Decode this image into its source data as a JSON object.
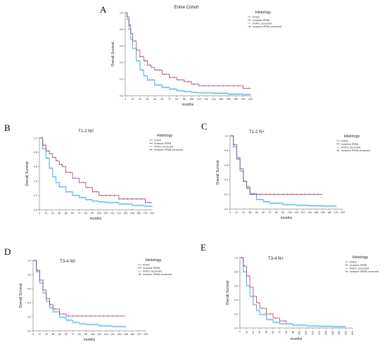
{
  "colors": {
    "fdac": "#5aaedc",
    "ipmn": "#9b3f6a",
    "fdac_censored": "#7cc4ea",
    "ipmn_censored": "#c0425d",
    "axis": "#555555"
  },
  "chart_data": [
    {
      "type": "line",
      "panel_label": "A",
      "title": "Entire Cohort",
      "xlabel": "months",
      "ylabel": "Overall Survival",
      "xlim": [
        0,
        204
      ],
      "ylim": [
        0,
        1.0
      ],
      "xticks": [
        "0",
        "12",
        "24",
        "36",
        "48",
        "60",
        "72",
        "84",
        "96",
        "108",
        "120",
        "132",
        "144",
        "156",
        "168",
        "180",
        "192",
        "204"
      ],
      "yticks": [
        "0.0",
        "0.2",
        "0.4",
        "0.6",
        "0.8",
        "1.0"
      ],
      "legend": {
        "title": "Histology",
        "entries": [
          "FDAC",
          "invasive IPMN",
          "FDAC-censored",
          "invasive IPMN-censored"
        ]
      },
      "series": [
        {
          "name": "FDAC",
          "x": [
            0,
            3,
            6,
            9,
            12,
            18,
            24,
            30,
            36,
            48,
            60,
            72,
            84,
            96,
            108,
            120,
            144,
            168,
            192,
            204
          ],
          "y": [
            1.0,
            0.92,
            0.8,
            0.68,
            0.57,
            0.42,
            0.31,
            0.24,
            0.19,
            0.13,
            0.1,
            0.08,
            0.06,
            0.05,
            0.04,
            0.035,
            0.03,
            0.02,
            0.015,
            0.01
          ]
        },
        {
          "name": "invasive IPMN",
          "x": [
            0,
            3,
            6,
            9,
            12,
            18,
            24,
            30,
            36,
            42,
            48,
            60,
            72,
            84,
            96,
            108,
            120,
            144,
            168,
            192,
            204
          ],
          "y": [
            1.0,
            0.95,
            0.85,
            0.75,
            0.66,
            0.55,
            0.47,
            0.42,
            0.37,
            0.34,
            0.31,
            0.26,
            0.22,
            0.19,
            0.17,
            0.14,
            0.12,
            0.12,
            0.12,
            0.09,
            0.09
          ]
        }
      ]
    },
    {
      "type": "line",
      "panel_label": "B",
      "title": "T1-2 N0",
      "xlabel": "months",
      "ylabel": "Overall Survival",
      "xlim": [
        0,
        204
      ],
      "ylim": [
        0,
        1.0
      ],
      "xticks": [
        "0",
        "12",
        "24",
        "36",
        "48",
        "60",
        "72",
        "84",
        "96",
        "108",
        "120",
        "132",
        "144",
        "156",
        "168",
        "180",
        "192",
        "204"
      ],
      "yticks": [
        "0.0",
        "0.2",
        "0.4",
        "0.6",
        "0.8",
        "1.0"
      ],
      "legend": {
        "title": "Histology",
        "entries": [
          "FDAC",
          "invasive IPMN",
          "FDAC-censored",
          "invasive IPMN-censored"
        ]
      },
      "series": [
        {
          "name": "FDAC",
          "x": [
            0,
            6,
            12,
            18,
            24,
            30,
            36,
            48,
            60,
            72,
            84,
            96,
            108,
            120,
            144,
            168,
            192,
            204
          ],
          "y": [
            1.0,
            0.85,
            0.72,
            0.58,
            0.46,
            0.38,
            0.32,
            0.25,
            0.2,
            0.17,
            0.14,
            0.12,
            0.11,
            0.1,
            0.08,
            0.06,
            0.05,
            0.04
          ]
        },
        {
          "name": "invasive IPMN",
          "x": [
            0,
            6,
            12,
            18,
            24,
            30,
            36,
            42,
            48,
            60,
            72,
            84,
            96,
            108,
            120,
            144,
            168,
            192,
            204
          ],
          "y": [
            1.0,
            0.9,
            0.82,
            0.78,
            0.73,
            0.68,
            0.63,
            0.6,
            0.52,
            0.44,
            0.38,
            0.31,
            0.25,
            0.2,
            0.2,
            0.15,
            0.15,
            0.1,
            0.1
          ]
        }
      ]
    },
    {
      "type": "line",
      "panel_label": "C",
      "title": "T1-2 N+",
      "xlabel": "months",
      "ylabel": "Overall Survival",
      "xlim": [
        0,
        204
      ],
      "ylim": [
        0,
        1.0
      ],
      "xticks": [
        "0",
        "12",
        "24",
        "36",
        "48",
        "60",
        "72",
        "84",
        "96",
        "108",
        "120",
        "132",
        "144",
        "156",
        "168",
        "180",
        "192",
        "204"
      ],
      "yticks": [
        "0.0",
        "0.2",
        "0.4",
        "0.6",
        "0.8",
        "1.0"
      ],
      "legend": {
        "title": "Histology",
        "entries": [
          "FDAC",
          "invasive IPMN",
          "FDAC-censored",
          "invasive IPMN-censored"
        ]
      },
      "series": [
        {
          "name": "FDAC",
          "x": [
            0,
            6,
            12,
            18,
            24,
            30,
            36,
            48,
            60,
            72,
            96,
            120,
            144,
            168,
            192
          ],
          "y": [
            1.0,
            0.85,
            0.68,
            0.52,
            0.38,
            0.28,
            0.21,
            0.13,
            0.1,
            0.08,
            0.06,
            0.05,
            0.045,
            0.04,
            0.03
          ]
        },
        {
          "name": "invasive IPMN",
          "x": [
            0,
            6,
            12,
            18,
            24,
            30,
            36,
            48,
            60,
            72,
            96,
            120,
            144,
            168
          ],
          "y": [
            1.0,
            0.88,
            0.7,
            0.55,
            0.38,
            0.3,
            0.2,
            0.2,
            0.2,
            0.2,
            0.2,
            0.2,
            0.2,
            0.2
          ]
        }
      ]
    },
    {
      "type": "line",
      "panel_label": "D",
      "title": "T3-4 N0",
      "xlabel": "months",
      "ylabel": "Overall Survival",
      "xlim": [
        0,
        204
      ],
      "ylim": [
        0,
        1.0
      ],
      "xticks": [
        "0",
        "12",
        "24",
        "36",
        "48",
        "60",
        "72",
        "84",
        "96",
        "108",
        "120",
        "132",
        "144",
        "156",
        "168",
        "180",
        "192",
        "204"
      ],
      "yticks": [
        "0.0",
        "0.2",
        "0.4",
        "0.6",
        "0.8",
        "1.0"
      ],
      "legend": {
        "title": "Histology",
        "entries": [
          "FDAC",
          "invasive IPMN",
          "FDAC-censored",
          "invasive IPMN-censored"
        ]
      },
      "series": [
        {
          "name": "FDAC",
          "x": [
            0,
            6,
            12,
            18,
            24,
            30,
            36,
            48,
            60,
            72,
            84,
            96,
            120,
            144,
            168
          ],
          "y": [
            1.0,
            0.84,
            0.68,
            0.54,
            0.42,
            0.33,
            0.27,
            0.19,
            0.15,
            0.12,
            0.1,
            0.09,
            0.07,
            0.06,
            0.05
          ]
        },
        {
          "name": "invasive IPMN",
          "x": [
            0,
            6,
            12,
            18,
            24,
            30,
            36,
            48,
            60,
            72,
            96,
            120,
            144,
            168
          ],
          "y": [
            1.0,
            0.86,
            0.72,
            0.58,
            0.46,
            0.37,
            0.31,
            0.24,
            0.21,
            0.21,
            0.21,
            0.21,
            0.21,
            0.21
          ]
        }
      ]
    },
    {
      "type": "line",
      "panel_label": "E",
      "title": "T3-4 N+",
      "xlabel": "months",
      "ylabel": "Overall Survival",
      "xlim": [
        0,
        204
      ],
      "ylim": [
        0,
        1.0
      ],
      "xticks": [
        "0",
        "12",
        "24",
        "36",
        "48",
        "60",
        "72",
        "84",
        "96",
        "108",
        "120",
        "132",
        "144",
        "156",
        "168",
        "180",
        "192",
        "204"
      ],
      "yticks": [
        "0.0",
        "0.2",
        "0.4",
        "0.6",
        "0.8",
        "1.0"
      ],
      "legend": {
        "title": "Histology",
        "entries": [
          "FDAC",
          "invasive IPMN",
          "FDAC-censored",
          "invasive IPMN-censored"
        ]
      },
      "series": [
        {
          "name": "FDAC",
          "x": [
            0,
            6,
            12,
            18,
            24,
            30,
            36,
            48,
            60,
            72,
            96,
            120,
            144,
            168,
            192
          ],
          "y": [
            1.0,
            0.8,
            0.6,
            0.45,
            0.33,
            0.25,
            0.19,
            0.12,
            0.08,
            0.06,
            0.04,
            0.03,
            0.025,
            0.02,
            0.02
          ]
        },
        {
          "name": "invasive IPMN",
          "x": [
            0,
            6,
            12,
            18,
            24,
            30,
            36,
            48,
            60,
            72,
            84
          ],
          "y": [
            1.0,
            0.88,
            0.74,
            0.58,
            0.45,
            0.36,
            0.28,
            0.2,
            0.14,
            0.1,
            0.07
          ]
        }
      ]
    }
  ]
}
